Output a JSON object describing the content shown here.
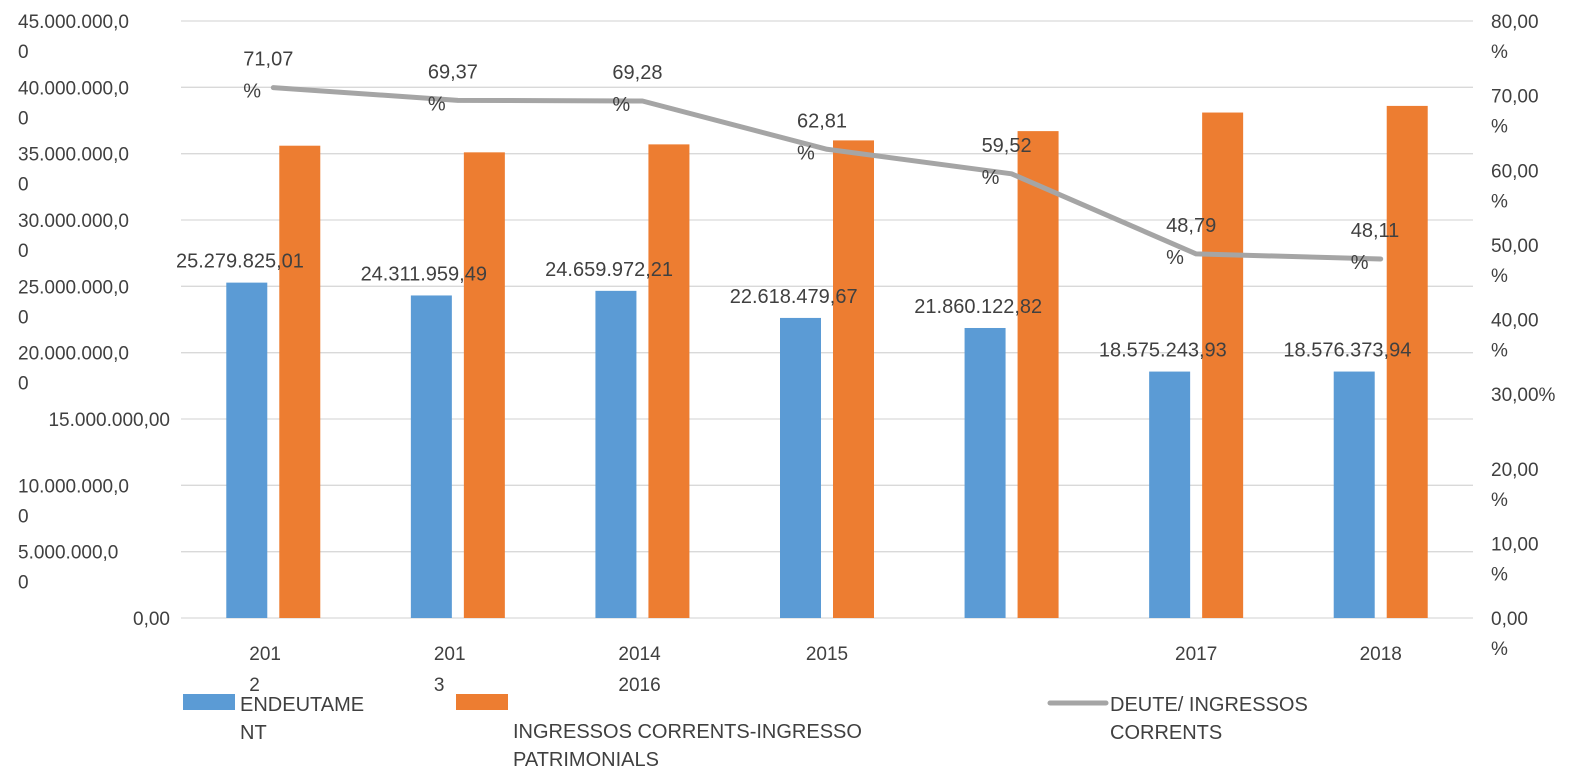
{
  "chart_data": {
    "type": "bar",
    "categories": [
      "2012",
      "2013",
      "2014",
      "2015",
      "2016",
      "2017",
      "2018"
    ],
    "series": [
      {
        "name": "ENDEUTAMENT",
        "kind": "bar",
        "axis": "left",
        "color": "#5b9bd5",
        "values": [
          25279825.01,
          24311959.49,
          24659972.21,
          22618479.67,
          21860122.82,
          18575243.93,
          18576373.94
        ],
        "labels": [
          "25.279.825,01",
          "24.311.959,49",
          "24.659.972,21",
          "22.618.479,67",
          "21.860.122,82",
          "18.575.243,93",
          "18.576.373,94"
        ]
      },
      {
        "name": "INGRESSOS CORRENTS-INGRESSO PATRIMONIALS",
        "kind": "bar",
        "axis": "left",
        "color": "#ed7d31",
        "values": [
          35600000,
          35100000,
          35700000,
          36000000,
          36700000,
          38100000,
          38600000
        ]
      },
      {
        "name": "DEUTE/ INGRESSOS CORRENTS",
        "kind": "line",
        "axis": "right",
        "color": "#a5a5a5",
        "values": [
          71.07,
          69.37,
          69.28,
          62.81,
          59.52,
          48.79,
          48.11
        ],
        "labels": [
          "71,07 %",
          "69,37 %",
          "69,28 %",
          "62,81 %",
          "59,52 %",
          "48,79 %",
          "48,11 %"
        ]
      }
    ],
    "x_tick_labels": [
      "201 2",
      "201 3",
      "2014 2016",
      "2015",
      "",
      "2017",
      "2018"
    ],
    "y_left": {
      "range": [
        0,
        45000000
      ],
      "ticks": [
        0,
        5000000,
        10000000,
        15000000,
        20000000,
        25000000,
        30000000,
        35000000,
        40000000,
        45000000
      ],
      "tick_labels": [
        "0,00",
        "5.000.000,0 0",
        "10.000.000,0 0",
        "15.000.000,00",
        "20.000.000,0 0",
        "25.000.000,0 0",
        "30.000.000,0 0",
        "35.000.000,0 0",
        "40.000.000,0 0",
        "45.000.000,0 0"
      ]
    },
    "y_right": {
      "range": [
        0,
        80
      ],
      "ticks": [
        0,
        10,
        20,
        30,
        40,
        50,
        60,
        70,
        80
      ],
      "tick_labels": [
        "0,00 %",
        "10,00 %",
        "20,00 %",
        "30,00%",
        "40,00 %",
        "50,00 %",
        "60,00 %",
        "70,00 %",
        "80,00 %"
      ]
    },
    "grid": true,
    "legend_position": "bottom"
  },
  "legend": {
    "items": [
      {
        "label": "ENDEUTAME NT",
        "color": "#5b9bd5",
        "kind": "bar"
      },
      {
        "label": "INGRESSOS CORRENTS-INGRESSO PATRIMONIALS",
        "color": "#ed7d31",
        "kind": "bar"
      },
      {
        "label": "DEUTE/ INGRESSOS CORRENTS",
        "color": "#a5a5a5",
        "kind": "line"
      }
    ]
  }
}
